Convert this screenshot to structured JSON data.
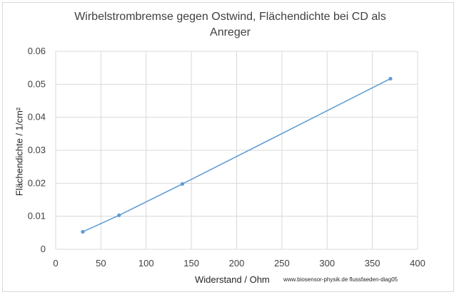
{
  "chart_data": {
    "type": "line",
    "title": [
      "Wirbelstrombremse gegen Ostwind, Flächendichte bei CD als",
      "Anreger"
    ],
    "xlabel": "Widerstand / Ohm",
    "ylabel": "Flächendichte / 1/cm²",
    "credit": "www.biosensor-physik.de  flussfaeden-diag05",
    "xlim": [
      0,
      400
    ],
    "ylim": [
      0,
      0.06
    ],
    "xticks": [
      "0",
      "50",
      "100",
      "150",
      "200",
      "250",
      "300",
      "350",
      "400"
    ],
    "yticks": [
      "0",
      "0.01",
      "0.02",
      "0.03",
      "0.04",
      "0.05",
      "0.06"
    ],
    "grid": true,
    "series": [
      {
        "x": [
          30,
          70,
          140,
          370
        ],
        "y": [
          0.0053,
          0.0103,
          0.0198,
          0.0517
        ],
        "color": "#5b9bd5"
      }
    ]
  }
}
